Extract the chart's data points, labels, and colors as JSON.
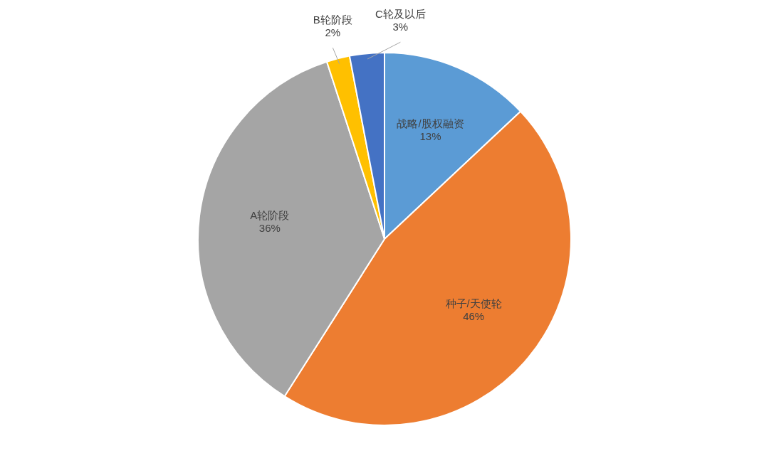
{
  "chart_data": {
    "type": "pie",
    "categories": [
      "战略/股权融资",
      "种子/天使轮",
      "A轮阶段",
      "B轮阶段",
      "C轮及以后"
    ],
    "values": [
      13,
      46,
      36,
      2,
      3
    ],
    "colors": [
      "#5b9bd5",
      "#ed7d31",
      "#a5a5a5",
      "#ffc000",
      "#4472c4"
    ],
    "value_labels": [
      "13%",
      "46%",
      "36%",
      "2%",
      "3%"
    ],
    "legend": false
  }
}
